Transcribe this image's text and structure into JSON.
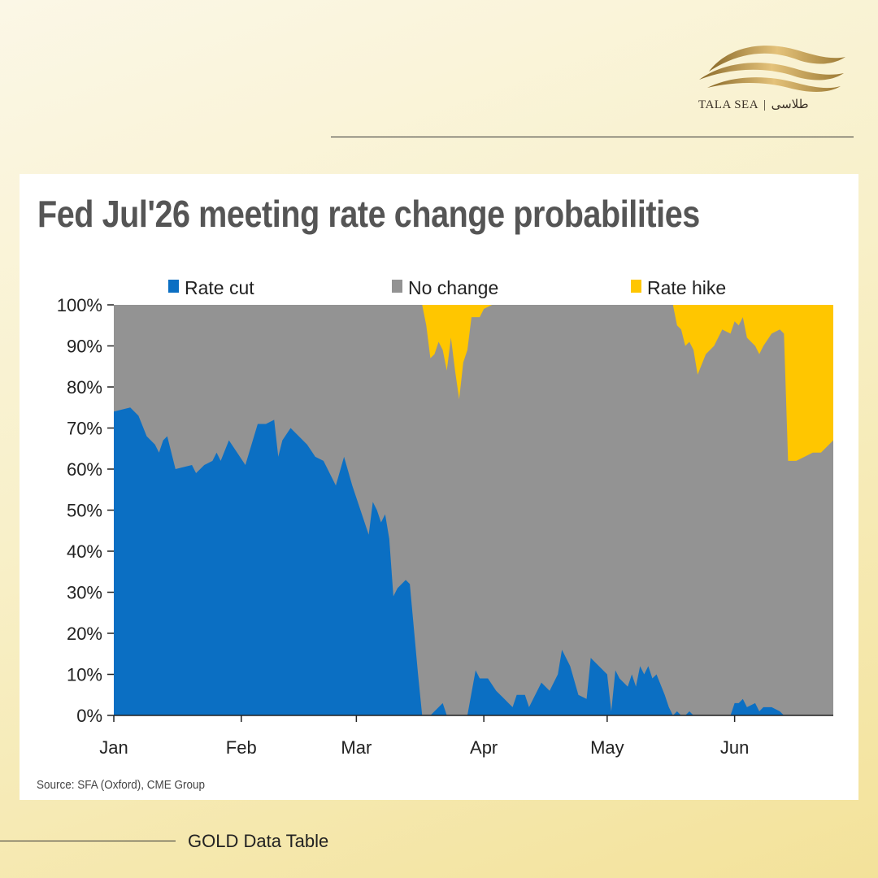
{
  "brand": {
    "name": "TALA SEA",
    "name_arabic": "طلاسی",
    "separator": "|"
  },
  "footer": {
    "label": "GOLD Data Table"
  },
  "chart_data": {
    "type": "area",
    "stacked": true,
    "title": "Fed Jul'26 meeting rate change probabilities",
    "source": "Source: SFA (Oxford), CME Group",
    "xlabel": "",
    "ylabel": "",
    "ylim": [
      0,
      100
    ],
    "y_ticks": [
      0,
      10,
      20,
      30,
      40,
      50,
      60,
      70,
      80,
      90,
      100
    ],
    "y_tick_suffix": "%",
    "x_ticks": [
      "Jan",
      "Feb",
      "Mar",
      "Apr",
      "May",
      "Jun"
    ],
    "x_tick_positions": [
      0,
      31,
      59,
      90,
      120,
      151
    ],
    "xlim": [
      0,
      175
    ],
    "x_unit": "day of year",
    "legend_position": "top",
    "grid": false,
    "colors": {
      "Rate cut": "#0b6fc3",
      "No change": "#939393",
      "Rate hike": "#ffc600"
    },
    "series": [
      {
        "name": "Rate cut",
        "points": [
          [
            0,
            74
          ],
          [
            2,
            74.5
          ],
          [
            4,
            75
          ],
          [
            6,
            73
          ],
          [
            8,
            68
          ],
          [
            10,
            66
          ],
          [
            11,
            64
          ],
          [
            12,
            67
          ],
          [
            13,
            68
          ],
          [
            15,
            60
          ],
          [
            17,
            60.5
          ],
          [
            19,
            61
          ],
          [
            20,
            59
          ],
          [
            22,
            61
          ],
          [
            24,
            62
          ],
          [
            25,
            64
          ],
          [
            26,
            62
          ],
          [
            28,
            67
          ],
          [
            30,
            64
          ],
          [
            32,
            61
          ],
          [
            35,
            71
          ],
          [
            37,
            71
          ],
          [
            39,
            72
          ],
          [
            40,
            63
          ],
          [
            41,
            67
          ],
          [
            43,
            70
          ],
          [
            45,
            68
          ],
          [
            47,
            66
          ],
          [
            49,
            63
          ],
          [
            51,
            62
          ],
          [
            53,
            58
          ],
          [
            54,
            56
          ],
          [
            56,
            63
          ],
          [
            58,
            56
          ],
          [
            59,
            53
          ],
          [
            61,
            47
          ],
          [
            62,
            44
          ],
          [
            63,
            52
          ],
          [
            64,
            50
          ],
          [
            65,
            47
          ],
          [
            66,
            49
          ],
          [
            67,
            43
          ],
          [
            68,
            29
          ],
          [
            69,
            31
          ],
          [
            71,
            33
          ],
          [
            72,
            32
          ],
          [
            73,
            21
          ],
          [
            74,
            10
          ],
          [
            75,
            0
          ],
          [
            77,
            0
          ],
          [
            80,
            3
          ],
          [
            81,
            0
          ],
          [
            86,
            0
          ],
          [
            88,
            11
          ],
          [
            89,
            9
          ],
          [
            91,
            9
          ],
          [
            93,
            6
          ],
          [
            95,
            4
          ],
          [
            96,
            3
          ],
          [
            97,
            2
          ],
          [
            98,
            5
          ],
          [
            100,
            5
          ],
          [
            101,
            2
          ],
          [
            104,
            8
          ],
          [
            106,
            6
          ],
          [
            108,
            10
          ],
          [
            109,
            16
          ],
          [
            111,
            12
          ],
          [
            113,
            5
          ],
          [
            115,
            4
          ],
          [
            116,
            14
          ],
          [
            118,
            12
          ],
          [
            120,
            10
          ],
          [
            121,
            1
          ],
          [
            122,
            11
          ],
          [
            123,
            9
          ],
          [
            125,
            7
          ],
          [
            126,
            10
          ],
          [
            127,
            7
          ],
          [
            128,
            12
          ],
          [
            129,
            10
          ],
          [
            130,
            12
          ],
          [
            131,
            9
          ],
          [
            132,
            10
          ],
          [
            134,
            5
          ],
          [
            135,
            2
          ],
          [
            136,
            0
          ],
          [
            137,
            1
          ],
          [
            138,
            0
          ],
          [
            139,
            0
          ],
          [
            140,
            1
          ],
          [
            141,
            0
          ],
          [
            150,
            0
          ],
          [
            151,
            3
          ],
          [
            152,
            3
          ],
          [
            153,
            4
          ],
          [
            154,
            2
          ],
          [
            156,
            3
          ],
          [
            157,
            1
          ],
          [
            158,
            2
          ],
          [
            160,
            2
          ],
          [
            162,
            1
          ],
          [
            163,
            0
          ],
          [
            175,
            0
          ]
        ]
      },
      {
        "name": "No change",
        "points": [
          [
            0,
            26
          ],
          [
            75,
            100
          ],
          [
            76,
            95
          ],
          [
            77,
            87
          ],
          [
            78,
            88
          ],
          [
            79,
            91
          ],
          [
            80,
            86
          ],
          [
            81,
            84
          ],
          [
            82,
            92
          ],
          [
            83,
            84
          ],
          [
            84,
            77
          ],
          [
            85,
            86
          ],
          [
            86,
            89
          ],
          [
            87,
            86
          ],
          [
            88,
            86
          ],
          [
            89,
            88
          ],
          [
            90,
            90
          ],
          [
            92,
            92
          ],
          [
            94,
            92
          ],
          [
            96,
            93
          ],
          [
            98,
            93
          ],
          [
            100,
            95
          ],
          [
            102,
            92
          ],
          [
            104,
            91
          ],
          [
            106,
            93
          ],
          [
            108,
            83
          ],
          [
            110,
            87
          ],
          [
            112,
            94
          ],
          [
            114,
            95
          ],
          [
            116,
            85
          ],
          [
            118,
            86
          ],
          [
            120,
            89
          ],
          [
            122,
            88
          ],
          [
            124,
            90
          ],
          [
            126,
            88
          ],
          [
            128,
            86
          ],
          [
            130,
            87
          ],
          [
            132,
            88
          ],
          [
            134,
            88
          ],
          [
            136,
            91
          ],
          [
            138,
            89
          ],
          [
            140,
            90
          ],
          [
            142,
            83
          ],
          [
            144,
            86
          ],
          [
            146,
            87
          ],
          [
            148,
            90
          ],
          [
            150,
            89
          ],
          [
            152,
            88
          ],
          [
            154,
            86
          ],
          [
            156,
            87
          ],
          [
            158,
            88
          ],
          [
            160,
            91
          ],
          [
            162,
            93
          ],
          [
            164,
            62
          ],
          [
            166,
            62
          ],
          [
            168,
            63
          ],
          [
            170,
            64
          ],
          [
            172,
            64
          ],
          [
            175,
            67
          ]
        ]
      },
      {
        "name": "Rate hike",
        "points": [
          [
            75,
            0
          ],
          [
            76,
            5
          ],
          [
            77,
            13
          ],
          [
            78,
            12
          ],
          [
            79,
            9
          ],
          [
            80,
            11
          ],
          [
            81,
            16
          ],
          [
            82,
            8
          ],
          [
            83,
            16
          ],
          [
            84,
            23
          ],
          [
            85,
            14
          ],
          [
            86,
            11
          ],
          [
            87,
            3
          ],
          [
            88,
            3
          ],
          [
            89,
            3
          ],
          [
            90,
            1
          ],
          [
            92,
            0
          ],
          [
            94,
            0
          ],
          [
            96,
            0
          ],
          [
            98,
            0
          ],
          [
            100,
            0
          ],
          [
            102,
            0
          ],
          [
            104,
            0
          ],
          [
            106,
            0
          ],
          [
            108,
            0
          ],
          [
            110,
            0
          ],
          [
            112,
            0
          ],
          [
            114,
            0
          ],
          [
            116,
            0
          ],
          [
            118,
            0
          ],
          [
            120,
            0
          ],
          [
            121,
            0
          ],
          [
            136,
            0
          ],
          [
            137,
            5
          ],
          [
            138,
            6
          ],
          [
            139,
            10
          ],
          [
            140,
            9
          ],
          [
            141,
            11
          ],
          [
            142,
            17
          ],
          [
            144,
            12
          ],
          [
            146,
            10
          ],
          [
            148,
            6
          ],
          [
            150,
            7
          ],
          [
            151,
            4
          ],
          [
            152,
            5
          ],
          [
            153,
            3
          ],
          [
            154,
            8
          ],
          [
            156,
            10
          ],
          [
            157,
            12
          ],
          [
            158,
            10
          ],
          [
            160,
            7
          ],
          [
            162,
            6
          ],
          [
            163,
            7
          ],
          [
            164,
            38
          ],
          [
            166,
            38
          ],
          [
            168,
            37
          ],
          [
            170,
            36
          ],
          [
            172,
            36
          ],
          [
            175,
            33
          ]
        ]
      }
    ]
  }
}
